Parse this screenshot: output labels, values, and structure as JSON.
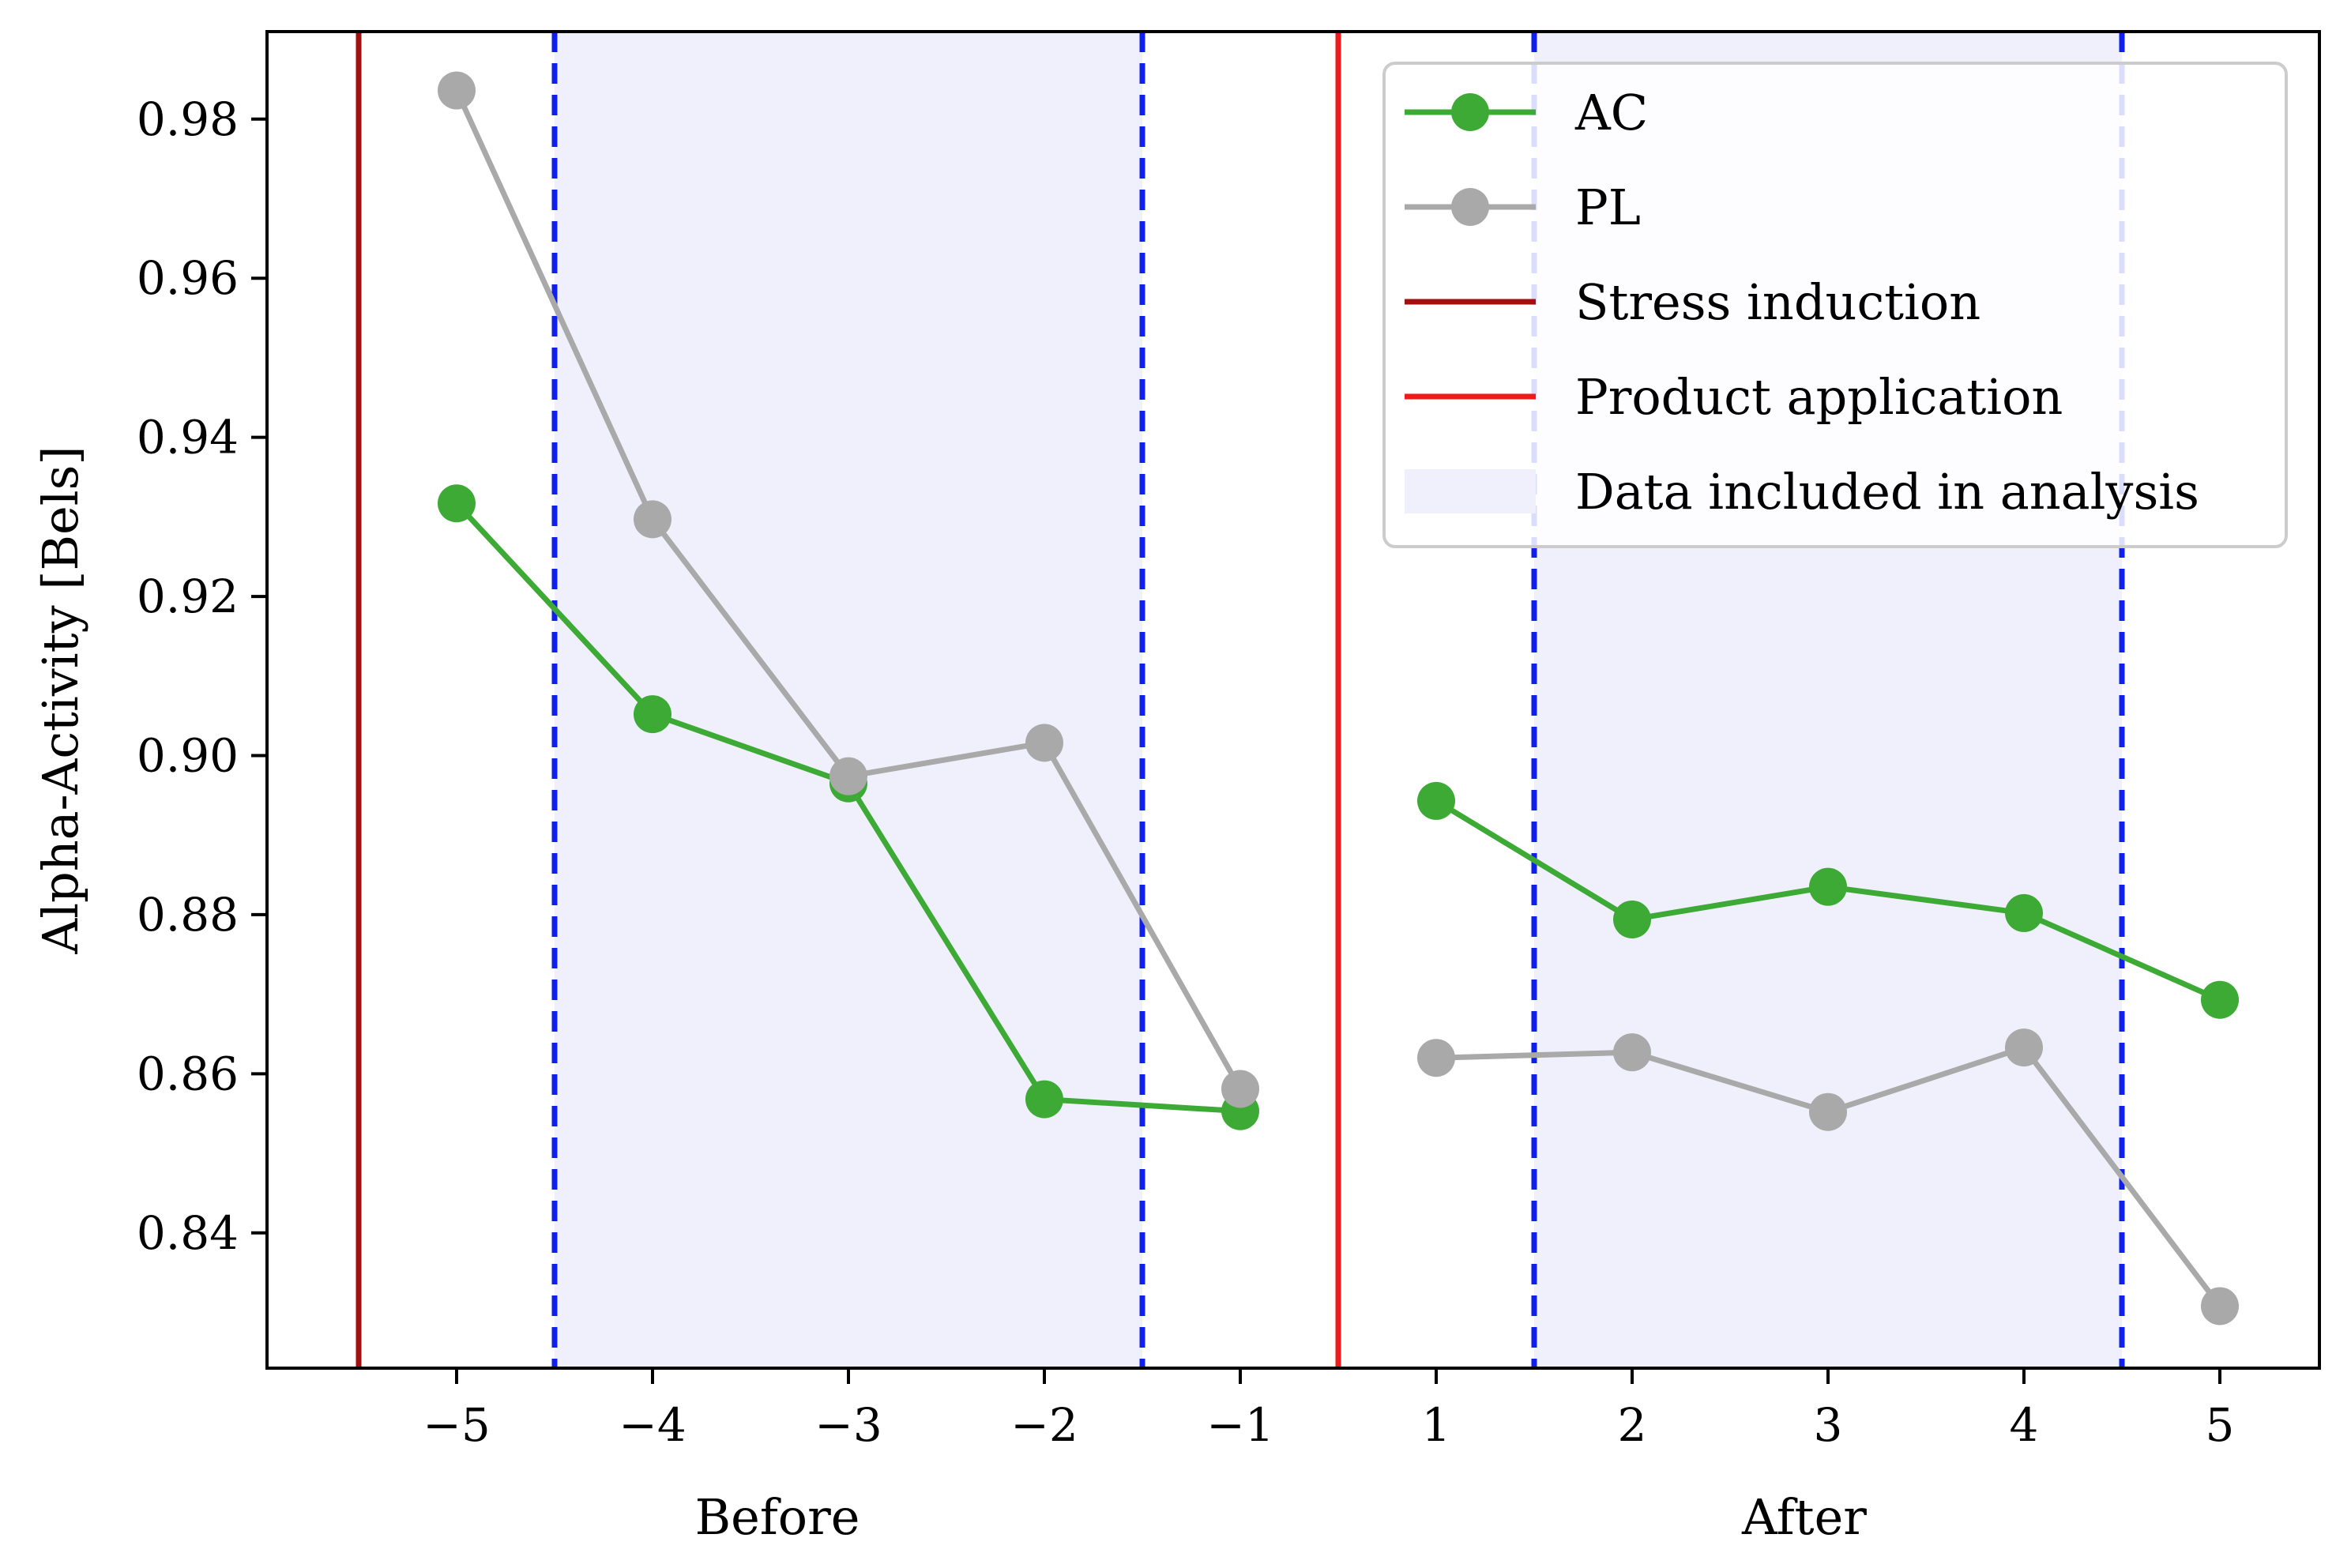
{
  "chart_data": {
    "type": "line",
    "ylabel": "Alpha-Activity [Bels]",
    "x_group_labels": [
      "Before",
      "After"
    ],
    "x_ticks": [
      -5,
      -4,
      -3,
      -2,
      -1,
      1,
      2,
      3,
      4,
      5
    ],
    "x_tick_labels": [
      "−5",
      "−4",
      "−3",
      "−2",
      "−1",
      "1",
      "2",
      "3",
      "4",
      "5"
    ],
    "y_ticks": [
      0.84,
      0.86,
      0.88,
      0.9,
      0.92,
      0.94,
      0.96,
      0.98
    ],
    "y_tick_labels": [
      "0.84",
      "0.86",
      "0.88",
      "0.90",
      "0.92",
      "0.94",
      "0.96",
      "0.98"
    ],
    "ylim": [
      0.823,
      0.991
    ],
    "grid": false,
    "legend_position": "top-right",
    "series": [
      {
        "name": "AC",
        "color": "#3daa35",
        "segments": [
          {
            "x": [
              -5,
              -4,
              -3,
              -2,
              -1
            ],
            "y": [
              0.9317,
              0.9052,
              0.8965,
              0.8568,
              0.8553
            ]
          },
          {
            "x": [
              1,
              2,
              3,
              4,
              5
            ],
            "y": [
              0.8943,
              0.8794,
              0.8835,
              0.8802,
              0.8693
            ]
          }
        ]
      },
      {
        "name": "PL",
        "color": "#a9a9a9",
        "segments": [
          {
            "x": [
              -5,
              -4,
              -3,
              -2,
              -1
            ],
            "y": [
              0.9836,
              0.9297,
              0.8974,
              0.9016,
              0.8581
            ]
          },
          {
            "x": [
              1,
              2,
              3,
              4,
              5
            ],
            "y": [
              0.862,
              0.8627,
              0.8552,
              0.8633,
              0.8308
            ]
          }
        ]
      }
    ],
    "vertical_lines": [
      {
        "name": "Stress induction",
        "x": -5.5,
        "color": "#a30f0f"
      },
      {
        "name": "Product application",
        "x": 0,
        "color": "#ee1b1b"
      }
    ],
    "shaded_regions": [
      {
        "name": "Data included in analysis",
        "x_start": -4.5,
        "x_end": -1.5,
        "fill": "#eff0fc",
        "border_color": "#0f1fee"
      },
      {
        "x_start": 1.5,
        "x_end": 4.5,
        "fill": "#eff0fc",
        "border_color": "#0f1fee"
      }
    ],
    "legend": [
      {
        "label": "AC",
        "kind": "line-marker",
        "color": "#3daa35"
      },
      {
        "label": "PL",
        "kind": "line-marker",
        "color": "#a9a9a9"
      },
      {
        "label": "Stress induction",
        "kind": "line",
        "color": "#a30f0f"
      },
      {
        "label": "Product application",
        "kind": "line",
        "color": "#ee1b1b"
      },
      {
        "label": "Data included in analysis",
        "kind": "patch",
        "color": "#eff0fc"
      }
    ]
  }
}
